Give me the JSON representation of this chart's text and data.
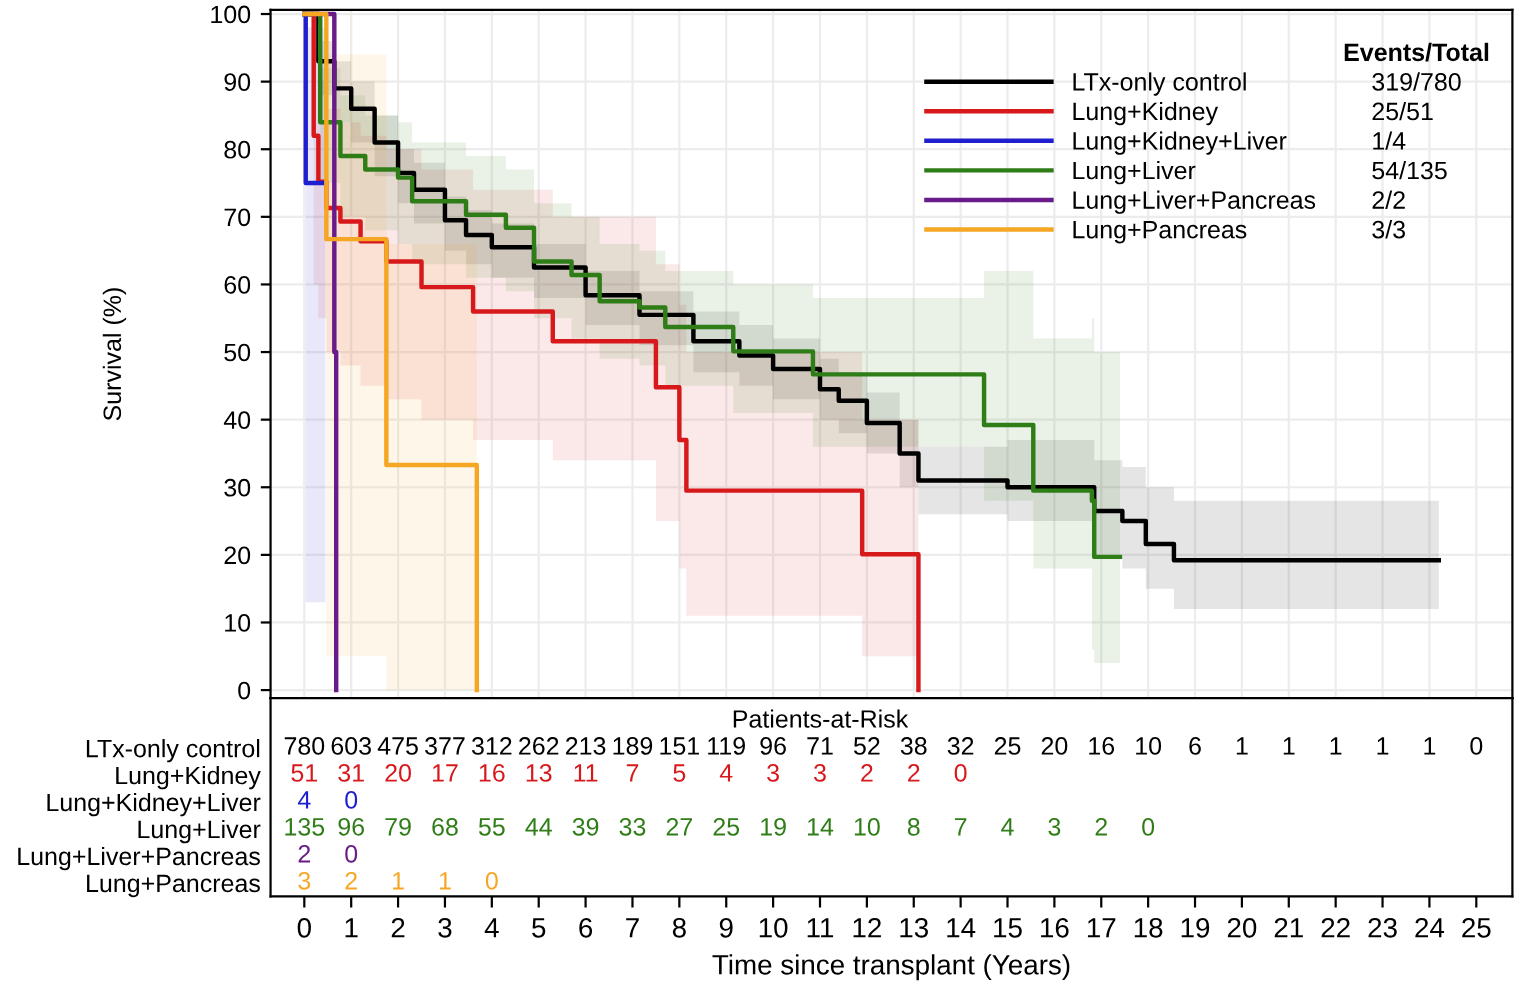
{
  "chart_data": [
    {
      "type": "step",
      "ylabel": "Survival (%)",
      "xlim": [
        -0.72,
        25.77
      ],
      "ylim": [
        -1.2,
        100.6
      ],
      "xticks": [
        0,
        1,
        2,
        3,
        4,
        5,
        6,
        7,
        8,
        9,
        10,
        11,
        12,
        13,
        14,
        15,
        16,
        17,
        18,
        19,
        20,
        21,
        22,
        23,
        24,
        25
      ],
      "yticks": [
        0,
        10,
        20,
        30,
        40,
        50,
        60,
        70,
        80,
        90,
        100
      ],
      "grid": true,
      "legend": "top right",
      "tick_labels": "y",
      "legend_title": "Events/Total",
      "annotations": [
        "319/780",
        "25/51",
        "1/4",
        "54/135",
        "2/2",
        "3/3"
      ],
      "series": [
        {
          "name": "LTx-only control",
          "color": "#000000",
          "x": [
            0,
            0.3,
            0.64,
            1,
            1.5,
            2,
            2.34,
            3,
            3.45,
            4,
            4.9,
            6,
            7.15,
            8.3,
            9.28,
            10,
            11,
            11.4,
            12,
            12.7,
            13.1,
            15,
            16.85,
            17.45,
            17.95,
            18.55,
            24.2
          ],
          "values": [
            100,
            93,
            89,
            86,
            81,
            76.5,
            74,
            69.5,
            67.3,
            65.5,
            62.5,
            58.4,
            55.5,
            51.6,
            49.5,
            47.5,
            44.5,
            42.8,
            39.5,
            35,
            31,
            30,
            26.5,
            25,
            21.6,
            19.2,
            19.2
          ],
          "lower": [
            100,
            88,
            84,
            81,
            76,
            72,
            69,
            65,
            63,
            61,
            58,
            54,
            51,
            47,
            45,
            43,
            40,
            38,
            35,
            30,
            26,
            25,
            20,
            18,
            15,
            12,
            12
          ],
          "upper": [
            100,
            96,
            93,
            90,
            85,
            80,
            78,
            73,
            71,
            69,
            66,
            62,
            59,
            56,
            54,
            52,
            49,
            47,
            44,
            40,
            36,
            37,
            34,
            33,
            30,
            28,
            28
          ]
        },
        {
          "name": "Lung+Kidney",
          "color": "#d7191c",
          "x": [
            0,
            0.2,
            0.3,
            0.47,
            0.77,
            1.2,
            1.75,
            2.5,
            3.6,
            5.3,
            7.5,
            8.0,
            8.15,
            11.9,
            13.1
          ],
          "values": [
            100,
            82,
            75.2,
            71.3,
            69.3,
            66.4,
            63.4,
            59.6,
            56,
            51.6,
            44.8,
            37,
            29.5,
            20.1,
            0
          ],
          "lower": [
            100,
            60,
            55,
            50,
            48,
            45,
            43,
            40,
            37,
            34,
            25,
            18,
            11,
            5,
            0
          ],
          "upper": [
            100,
            95,
            90,
            86,
            84,
            82,
            80,
            77,
            74,
            70,
            63,
            57,
            50,
            40,
            0
          ]
        },
        {
          "name": "Lung+Kidney+Liver",
          "color": "#1f1fd0",
          "x": [
            0,
            0.03,
            0.45
          ],
          "values": [
            100,
            75,
            75
          ],
          "lower": [
            100,
            13,
            13
          ],
          "upper": [
            100,
            98,
            98
          ]
        },
        {
          "name": "Lung+Liver",
          "color": "#2e7d17",
          "x": [
            0,
            0.34,
            0.77,
            1.3,
            2.0,
            2.3,
            3.45,
            4.3,
            4.9,
            5.7,
            6.3,
            7.15,
            7.7,
            9.15,
            10.85,
            14.5,
            15.55,
            16.8,
            16.85,
            17.4
          ],
          "values": [
            100,
            84,
            79,
            77,
            75.8,
            72.3,
            70.3,
            68.4,
            63.4,
            61.4,
            57.5,
            56.6,
            53.7,
            50.1,
            46.7,
            39.2,
            29.5,
            28,
            19.7,
            19.7
          ],
          "lower": [
            100,
            75,
            70,
            68,
            66,
            63,
            61,
            59,
            55,
            52,
            49,
            48,
            45,
            41,
            36,
            28,
            18,
            6,
            4,
            4
          ],
          "upper": [
            100,
            92,
            88,
            85,
            84,
            81,
            79,
            77,
            72,
            70,
            66,
            65,
            62,
            60,
            58,
            62,
            52,
            55,
            50,
            50
          ]
        },
        {
          "name": "Lung+Liver+Pancreas",
          "color": "#6a1b8a",
          "x": [
            0,
            0.64,
            0.68
          ],
          "values": [
            100,
            50,
            0
          ]
        },
        {
          "name": "Lung+Pancreas",
          "color": "#f5a623",
          "x": [
            0,
            0.47,
            1.75,
            3.68
          ],
          "values": [
            100,
            66.7,
            33.3,
            0
          ],
          "lower": [
            100,
            5,
            0,
            0
          ],
          "upper": [
            100,
            94,
            66,
            0
          ]
        }
      ]
    },
    {
      "type": "heatmap",
      "title": "Patients-at-Risk",
      "xlabel": "Time since transplant (Years)",
      "data_labels": true,
      "categories": [
        "0",
        "1",
        "2",
        "3",
        "4",
        "5",
        "6",
        "7",
        "8",
        "9",
        "10",
        "11",
        "12",
        "13",
        "14",
        "15",
        "16",
        "17",
        "18",
        "19",
        "20",
        "21",
        "22",
        "23",
        "24",
        "25"
      ],
      "y_categories": [
        "LTx-only control",
        "Lung+Kidney",
        "Lung+Kidney+Liver",
        "Lung+Liver",
        "Lung+Liver+Pancreas",
        "Lung+Pancreas"
      ],
      "colors": [
        "#000000",
        "#d7191c",
        "#1f1fd0",
        "#2e7d17",
        "#6a1b8a",
        "#f5a623"
      ],
      "cells": [
        [
          780,
          603,
          475,
          377,
          312,
          262,
          213,
          189,
          151,
          119,
          96,
          71,
          52,
          38,
          32,
          25,
          20,
          16,
          10,
          6,
          1,
          1,
          1,
          1,
          1,
          0
        ],
        [
          51,
          31,
          20,
          17,
          16,
          13,
          11,
          7,
          5,
          4,
          3,
          3,
          2,
          2,
          0,
          null,
          null,
          null,
          null,
          null,
          null,
          null,
          null,
          null,
          null,
          null
        ],
        [
          4,
          0,
          null,
          null,
          null,
          null,
          null,
          null,
          null,
          null,
          null,
          null,
          null,
          null,
          null,
          null,
          null,
          null,
          null,
          null,
          null,
          null,
          null,
          null,
          null,
          null
        ],
        [
          135,
          96,
          79,
          68,
          55,
          44,
          39,
          33,
          27,
          25,
          19,
          14,
          10,
          8,
          7,
          4,
          3,
          2,
          0,
          null,
          null,
          null,
          null,
          null,
          null,
          null
        ],
        [
          2,
          0,
          null,
          null,
          null,
          null,
          null,
          null,
          null,
          null,
          null,
          null,
          null,
          null,
          null,
          null,
          null,
          null,
          null,
          null,
          null,
          null,
          null,
          null,
          null,
          null
        ],
        [
          3,
          2,
          1,
          1,
          0,
          null,
          null,
          null,
          null,
          null,
          null,
          null,
          null,
          null,
          null,
          null,
          null,
          null,
          null,
          null,
          null,
          null,
          null,
          null,
          null,
          null
        ]
      ]
    }
  ]
}
